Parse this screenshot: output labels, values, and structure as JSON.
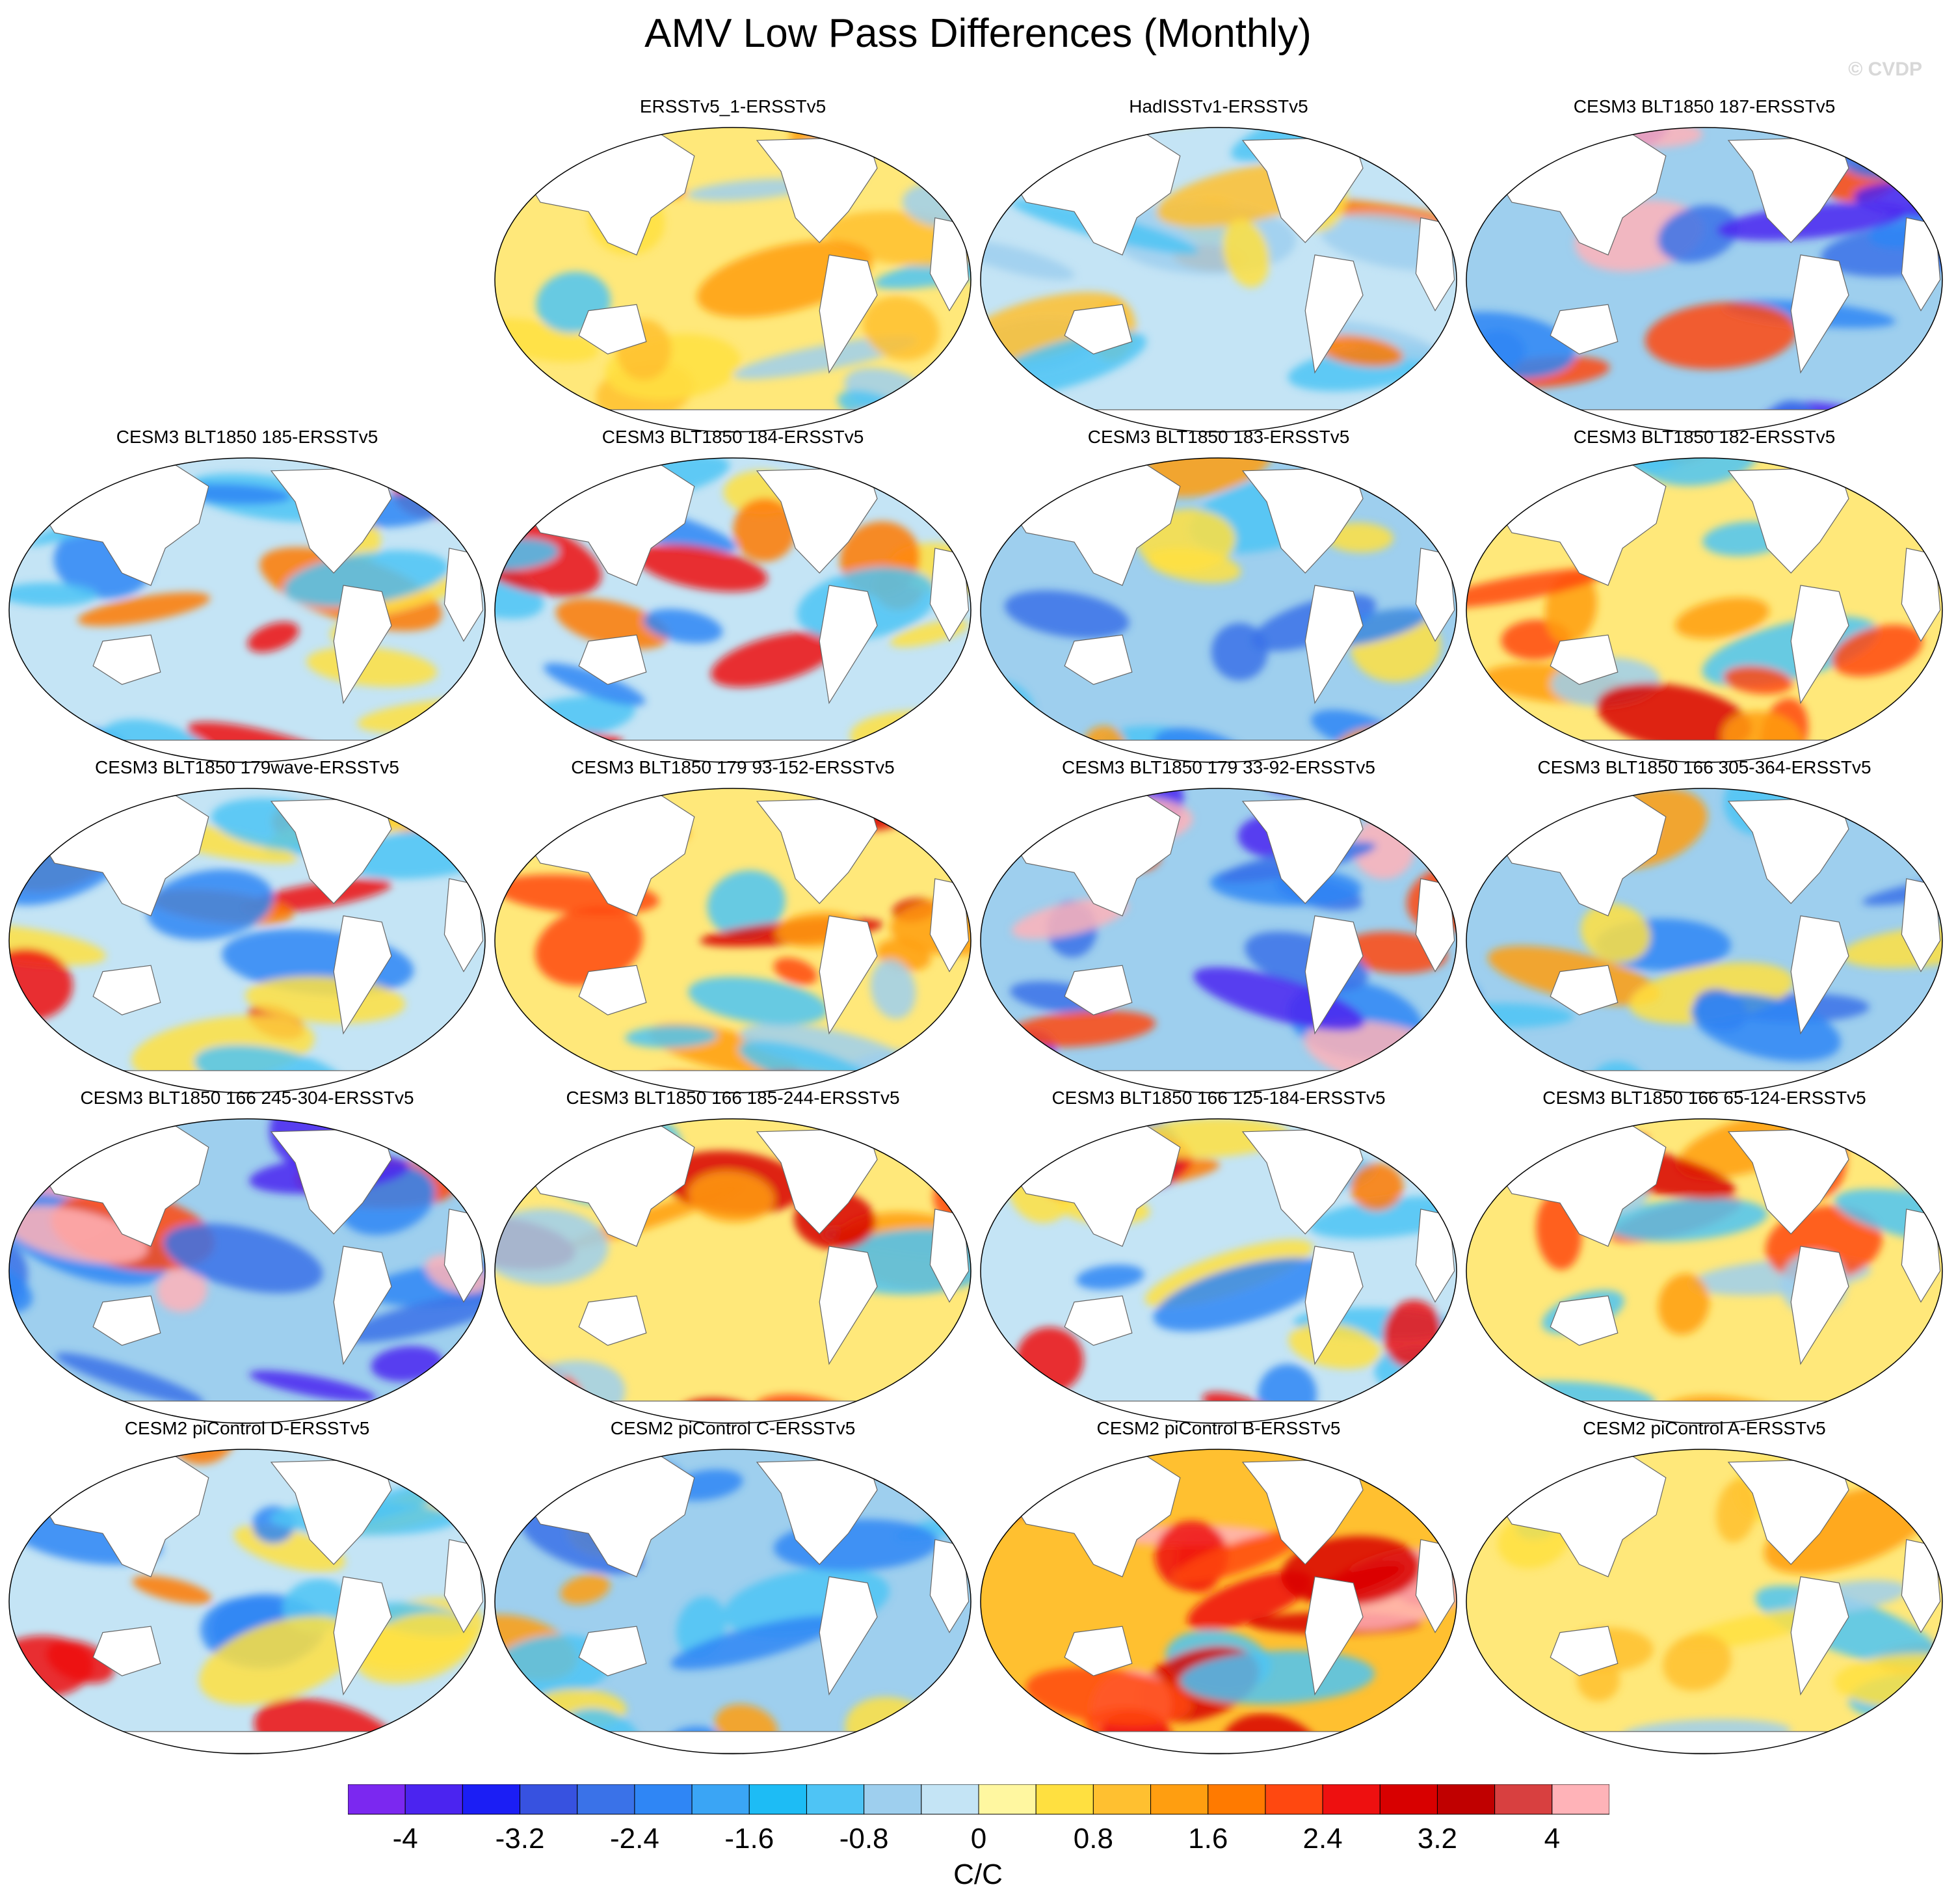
{
  "title": "AMV Low Pass Differences (Monthly)",
  "watermark": "© CVDP",
  "panels": [
    {
      "title": "ERSSTv5_1-ERSSTv5",
      "pattern": "mild-warm"
    },
    {
      "title": "HadISSTv1-ERSSTv5",
      "pattern": "mild-cool"
    },
    {
      "title": "CESM3 BLT1850 187-ERSSTv5",
      "pattern": "strong-cool"
    },
    {
      "title": "CESM3 BLT1850 185-ERSSTv5",
      "pattern": "mixed"
    },
    {
      "title": "CESM3 BLT1850 184-ERSSTv5",
      "pattern": "mixed"
    },
    {
      "title": "CESM3 BLT1850 183-ERSSTv5",
      "pattern": "cool"
    },
    {
      "title": "CESM3 BLT1850 182-ERSSTv5",
      "pattern": "warm"
    },
    {
      "title": "CESM3 BLT1850 179wave-ERSSTv5",
      "pattern": "mixed"
    },
    {
      "title": "CESM3 BLT1850 179 93-152-ERSSTv5",
      "pattern": "warm"
    },
    {
      "title": "CESM3 BLT1850 179 33-92-ERSSTv5",
      "pattern": "strong-cool"
    },
    {
      "title": "CESM3 BLT1850 166 305-364-ERSSTv5",
      "pattern": "cool"
    },
    {
      "title": "CESM3 BLT1850 166 245-304-ERSSTv5",
      "pattern": "strong-cool"
    },
    {
      "title": "CESM3 BLT1850 166 185-244-ERSSTv5",
      "pattern": "warm"
    },
    {
      "title": "CESM3 BLT1850 166 125-184-ERSSTv5",
      "pattern": "mixed"
    },
    {
      "title": "CESM3 BLT1850 166 65-124-ERSSTv5",
      "pattern": "warm"
    },
    {
      "title": "CESM2 piControl D-ERSSTv5",
      "pattern": "mixed"
    },
    {
      "title": "CESM2 piControl C-ERSSTv5",
      "pattern": "cool"
    },
    {
      "title": "CESM2 piControl B-ERSSTv5",
      "pattern": "strong-warm"
    },
    {
      "title": "CESM2 piControl A-ERSSTv5",
      "pattern": "mild-warm"
    }
  ],
  "colorbar": {
    "colors": [
      "#7b28f0",
      "#4b24f0",
      "#1b1ef5",
      "#3752e0",
      "#3a72e8",
      "#2f86f5",
      "#3aa5f5",
      "#1dbcf5",
      "#4ec4f5",
      "#9ecfee",
      "#c4e4f5",
      "#fff7a0",
      "#ffe040",
      "#ffc030",
      "#ff9e10",
      "#ff7a00",
      "#ff4810",
      "#ee1010",
      "#d80000",
      "#c00000",
      "#d84040",
      "#ffb3b8"
    ],
    "ticks": [
      "-4",
      "-3.2",
      "-2.4",
      "-1.6",
      "-0.8",
      "0",
      "0.8",
      "1.6",
      "2.4",
      "3.2",
      "4"
    ],
    "units": "C/C"
  }
}
